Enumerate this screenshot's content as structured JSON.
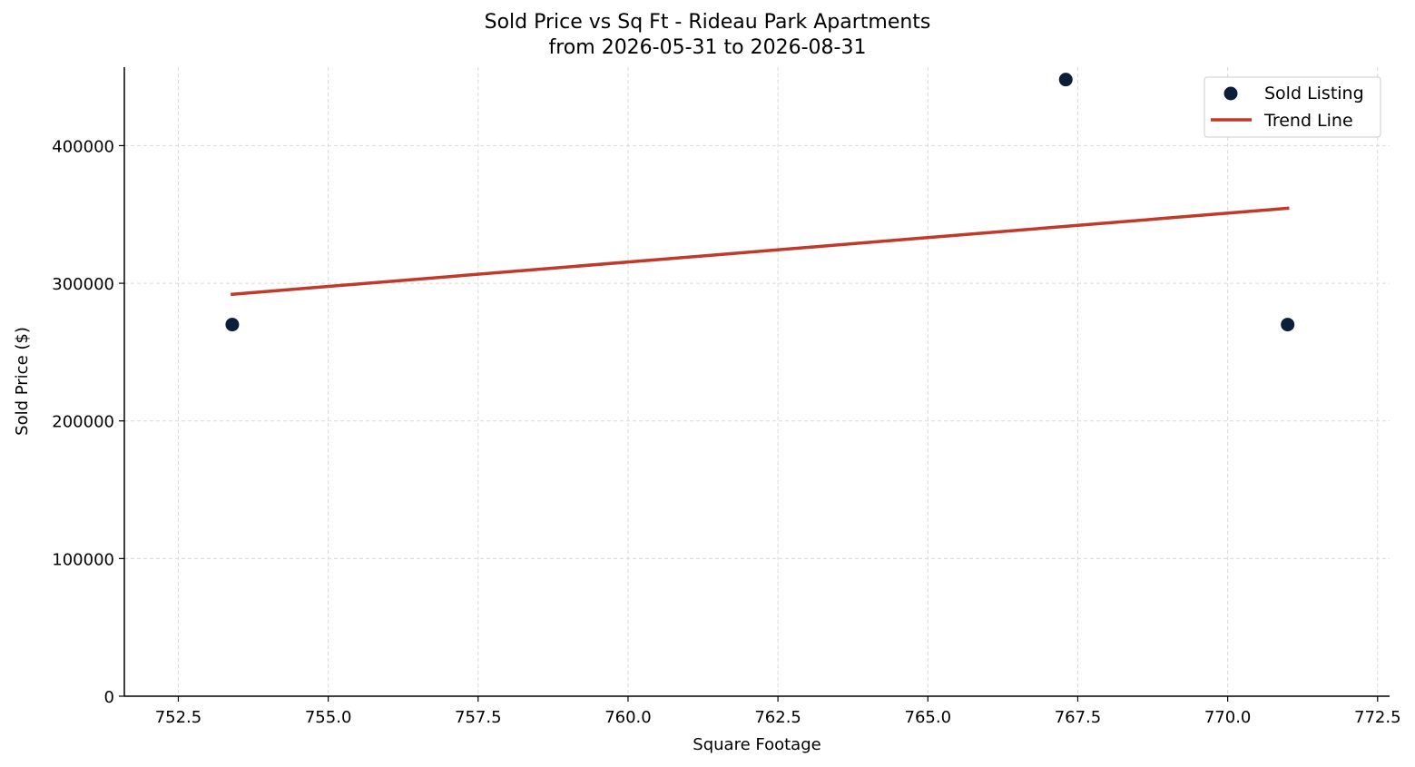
{
  "chart_data": {
    "type": "scatter",
    "title": "Sold Price vs Sq Ft - Rideau Park Apartments",
    "subtitle": "from 2026-05-31 to 2026-08-31",
    "xlabel": "Square Footage",
    "ylabel": "Sold Price ($)",
    "xlim": [
      751.6,
      772.7
    ],
    "ylim": [
      0,
      457000
    ],
    "xticks": [
      "752.5",
      "755.0",
      "757.5",
      "760.0",
      "762.5",
      "765.0",
      "767.5",
      "770.0",
      "772.5"
    ],
    "yticks": [
      "0",
      "100000",
      "200000",
      "300000",
      "400000"
    ],
    "grid": true,
    "legend_position": "top-right",
    "series": [
      {
        "name": "Sold Listing",
        "kind": "scatter",
        "color": "#0b1f3a",
        "points": [
          {
            "x": 753.4,
            "y": 270000
          },
          {
            "x": 767.3,
            "y": 448000
          },
          {
            "x": 771.0,
            "y": 270000
          }
        ]
      },
      {
        "name": "Trend Line",
        "kind": "line",
        "color": "#c0392b",
        "points": [
          {
            "x": 753.4,
            "y": 292000
          },
          {
            "x": 771.0,
            "y": 354500
          }
        ]
      }
    ]
  }
}
